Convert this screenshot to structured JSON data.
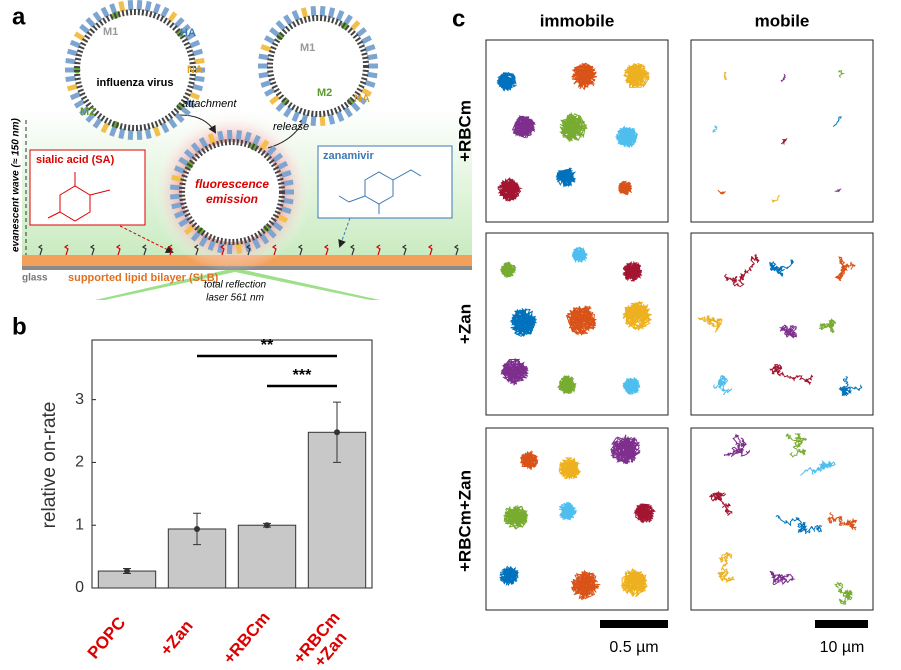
{
  "panel_a": {
    "label": "a",
    "m1_left": "M1",
    "ha": "HA",
    "na_left": "NA",
    "virus": "influenza virus",
    "m2_left": "M2",
    "m1_right": "M1",
    "m2_right": "M2",
    "na_right": "NA",
    "attachment": "attachment",
    "release": "release",
    "emission": [
      "fluorescence",
      "emission"
    ],
    "sialic_acid": "sialic acid (SA)",
    "zanamivir": "zanamivir",
    "evanescent": "evanescent wave (≈ 150 nm)",
    "glass": "glass",
    "slb": "supported lipid bilayer (SLB)",
    "laser": [
      "total reflection",
      "laser 561 nm"
    ]
  },
  "chart_data": {
    "type": "bar",
    "label": "b",
    "ylabel": "relative on-rate",
    "categories": [
      "POPC",
      "+Zan",
      "+RBCm",
      "+RBCm\n+Zan"
    ],
    "values": [
      0.27,
      0.94,
      1.0,
      2.48
    ],
    "errors": [
      0.04,
      0.25,
      0.03,
      0.48
    ],
    "color": "#c8c8c8",
    "ylim": [
      0,
      3.95
    ],
    "yticks": [
      0,
      1,
      2,
      3
    ],
    "annotations": [
      "**",
      "***"
    ]
  },
  "panel_c": {
    "label": "c",
    "columns": [
      "immobile",
      "mobile"
    ],
    "rows": [
      "+RBCm",
      "+Zan",
      "+RBCm+Zan"
    ],
    "scale_bars": [
      "0.5 µm",
      "10 µm"
    ]
  }
}
